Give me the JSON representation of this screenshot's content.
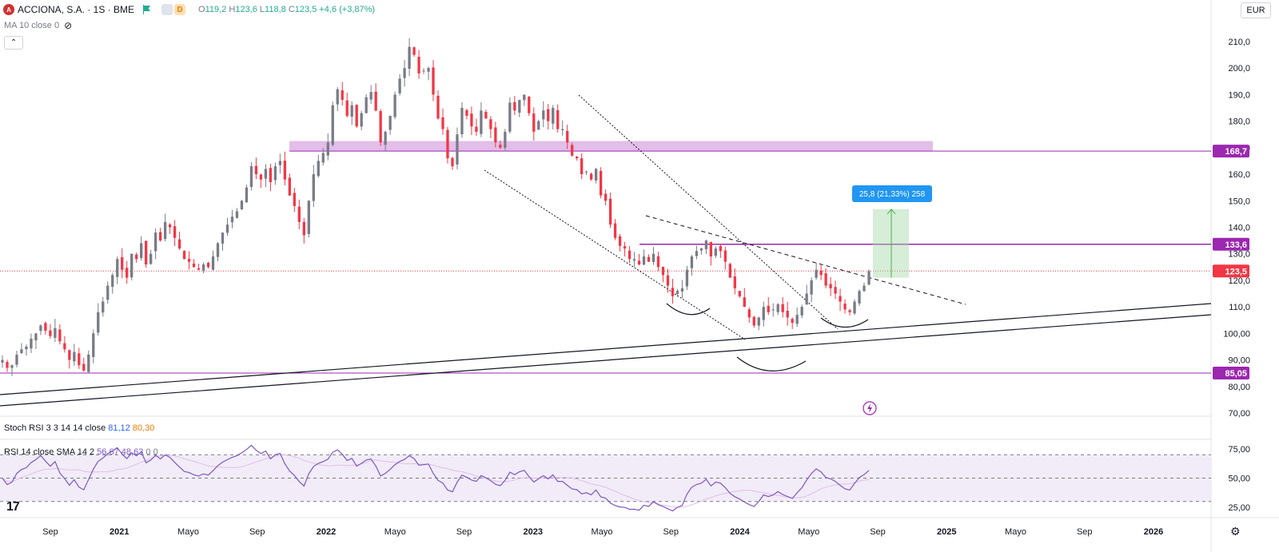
{
  "header": {
    "symbol_icon": "acciona-logo-icon",
    "symbol_title": "ACCIONA, S.A. · 1S · BME",
    "badge_d": "D",
    "ohlc": [
      {
        "key": "O",
        "val": "119,2"
      },
      {
        "key": "H",
        "val": "123,6"
      },
      {
        "key": "L",
        "val": "118,8"
      },
      {
        "key": "C",
        "val": "123,5"
      },
      {
        "key": "",
        "val": "+4,6 (+3,87%)"
      }
    ],
    "ma_label": "MA 10 close 0",
    "collapse_icon": "chevron-up-icon",
    "currency": "EUR"
  },
  "indicators": {
    "stoch_name": "Stoch RSI 3 3 14 14 close",
    "stoch_k": "81,12",
    "stoch_d": "80,30",
    "rsi_name": "RSI 14 close SMA 14 2",
    "rsi_value": "56,67",
    "rsi_sma": "48,63",
    "rsi_extra1": "0",
    "rsi_extra2": "0"
  },
  "measure_label": "25,8 (21,33%) 258",
  "colors": {
    "up": "#787b86",
    "down": "#f23645",
    "zone": "#ce93d8",
    "hline": "#9c27b0",
    "price_tag": "#f23645",
    "rsi_line": "#7e57c2",
    "rsi_sma": "#e1bee7",
    "rsi_bg": "#ede7f6",
    "measure": "#4caf50",
    "measure_label_bg": "#2196f3"
  },
  "chart_data": {
    "type": "candlestick",
    "currency": "EUR",
    "y_axis": {
      "ticks": [
        "210,0",
        "200,0",
        "190,0",
        "180,0",
        "170,0",
        "160,0",
        "150,0",
        "140,0",
        "130,0",
        "120,0",
        "110,0",
        "100,00",
        "90,00",
        "80,00",
        "70,00"
      ]
    },
    "x_axis": {
      "labels": [
        "Sep",
        "2021",
        "Mayo",
        "Sep",
        "2022",
        "Mayo",
        "Sep",
        "2023",
        "Mayo",
        "Sep",
        "2024",
        "Mayo",
        "Sep",
        "2025",
        "Mayo",
        "Sep",
        "2026"
      ],
      "bold": [
        "2021",
        "2022",
        "2023",
        "2024",
        "2025",
        "2026"
      ]
    },
    "price_tags": [
      {
        "label": "168,7",
        "value": 168.7,
        "color": "#9c27b0"
      },
      {
        "label": "133,6",
        "value": 133.6,
        "color": "#9c27b0"
      },
      {
        "label": "123,5",
        "value": 123.5,
        "color": "#f23645"
      },
      {
        "label": "85,05",
        "value": 85.05,
        "color": "#9c27b0"
      }
    ],
    "resistance_zone": [
      168.7,
      172.5
    ],
    "horizontal_lines": [
      168.7,
      133.6,
      85.05
    ],
    "current_price": 123.5,
    "measure": {
      "from": 121,
      "to": 146.8
    },
    "close_series_weekly": [
      90,
      87,
      88,
      92,
      94,
      95,
      98,
      100,
      103,
      101,
      99,
      102,
      97,
      94,
      90,
      93,
      88,
      86,
      92,
      100,
      108,
      112,
      118,
      122,
      128,
      124,
      121,
      130,
      128,
      134,
      126,
      130,
      138,
      135,
      142,
      140,
      136,
      132,
      128,
      127,
      125,
      124,
      126,
      125,
      129,
      134,
      138,
      141,
      144,
      146,
      150,
      155,
      163,
      160,
      158,
      162,
      157,
      163,
      165,
      158,
      152,
      148,
      142,
      137,
      150,
      160,
      165,
      168,
      172,
      186,
      192,
      188,
      182,
      186,
      178,
      183,
      189,
      191,
      184,
      172,
      176,
      182,
      190,
      196,
      200,
      208,
      205,
      198,
      199,
      200,
      190,
      181,
      177,
      166,
      163,
      175,
      185,
      182,
      178,
      176,
      184,
      181,
      177,
      172,
      170,
      176,
      187,
      184,
      188,
      190,
      183,
      176,
      180,
      184,
      180,
      185,
      177,
      177,
      172,
      167,
      166,
      160,
      161,
      158,
      162,
      152,
      150,
      141,
      136,
      133,
      132,
      128,
      128,
      126,
      129,
      127,
      130,
      125,
      122,
      118,
      114,
      116,
      117,
      124,
      129,
      131,
      132,
      135,
      129,
      132,
      131,
      127,
      121,
      117,
      114,
      110,
      106,
      103,
      106,
      110,
      108,
      109,
      111,
      108,
      106,
      104,
      107,
      110,
      115,
      120,
      124,
      122,
      118,
      117,
      115,
      112,
      109,
      108,
      112,
      116,
      118,
      123.5
    ],
    "rsi": {
      "ticks": [
        "75,00",
        "50,00",
        "25,00"
      ],
      "levels": [
        70,
        50,
        30
      ],
      "value": 56.67,
      "sma": 48.63
    },
    "annotations": [
      "descending-channel",
      "descending-trendline",
      "ascending-long-term-channel",
      "inverse-head-and-shoulders-arcs"
    ]
  }
}
